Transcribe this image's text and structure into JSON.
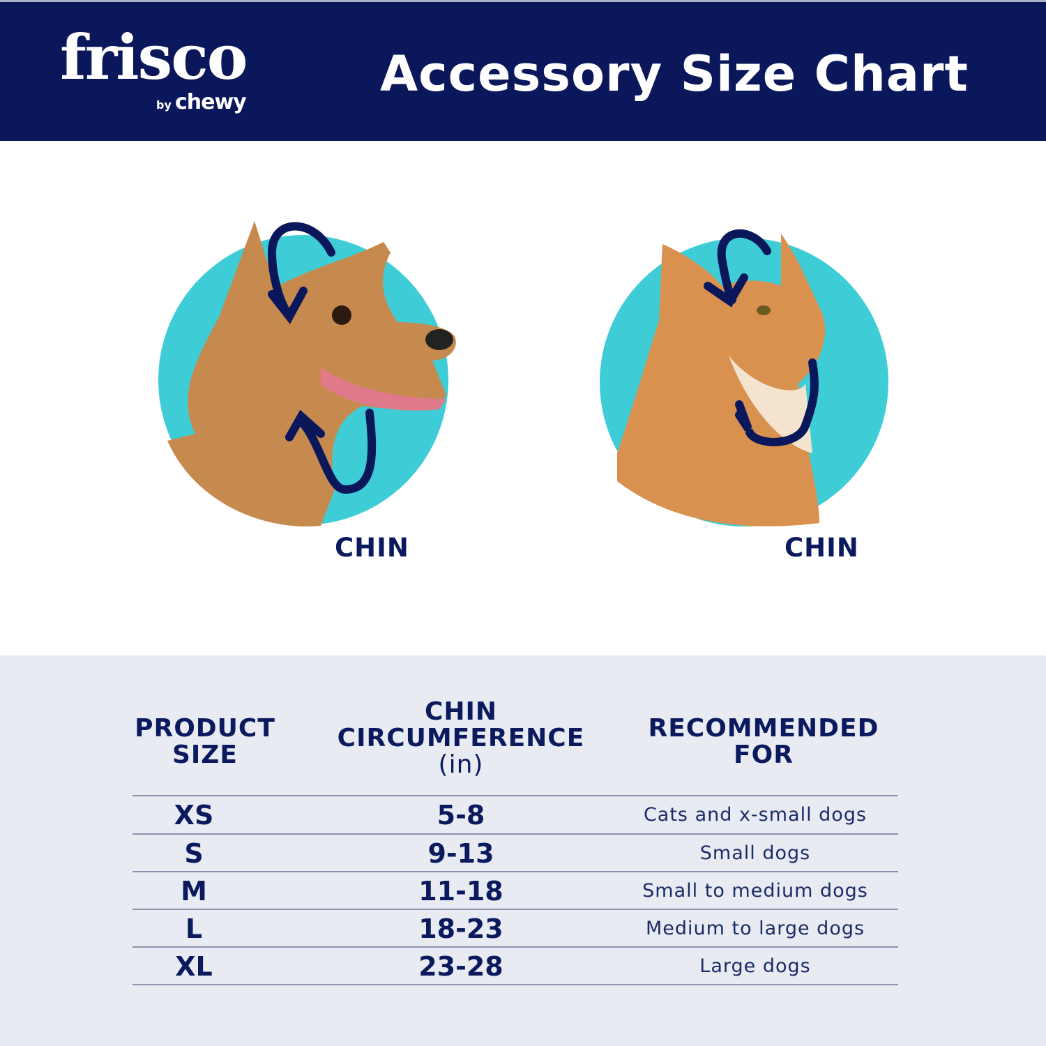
{
  "header": {
    "logo": {
      "name": "frisco",
      "byline": "by",
      "brand": "chewy"
    },
    "title": "Accessory Size Chart"
  },
  "colors": {
    "navy": "#0b175b",
    "teal": "#3ecdd6",
    "table_bg": "#e8ecf2"
  },
  "illustrations": [
    {
      "animal": "dog",
      "label": "CHIN",
      "icon": "measure-arrows-icon"
    },
    {
      "animal": "cat",
      "label": "CHIN",
      "icon": "measure-arrows-icon"
    }
  ],
  "table": {
    "headers": [
      {
        "lines": [
          "PRODUCT",
          "SIZE"
        ]
      },
      {
        "lines": [
          "CHIN",
          "CIRCUMFERENCE"
        ],
        "unit": "(in)"
      },
      {
        "lines": [
          "RECOMMENDED",
          "FOR"
        ]
      }
    ],
    "rows": [
      {
        "size": "XS",
        "chin": "5-8",
        "recommended": "Cats and x-small dogs"
      },
      {
        "size": "S",
        "chin": "9-13",
        "recommended": "Small dogs"
      },
      {
        "size": "M",
        "chin": "11-18",
        "recommended": "Small to medium dogs"
      },
      {
        "size": "L",
        "chin": "18-23",
        "recommended": "Medium to large dogs"
      },
      {
        "size": "XL",
        "chin": "23-28",
        "recommended": "Large dogs"
      }
    ]
  }
}
